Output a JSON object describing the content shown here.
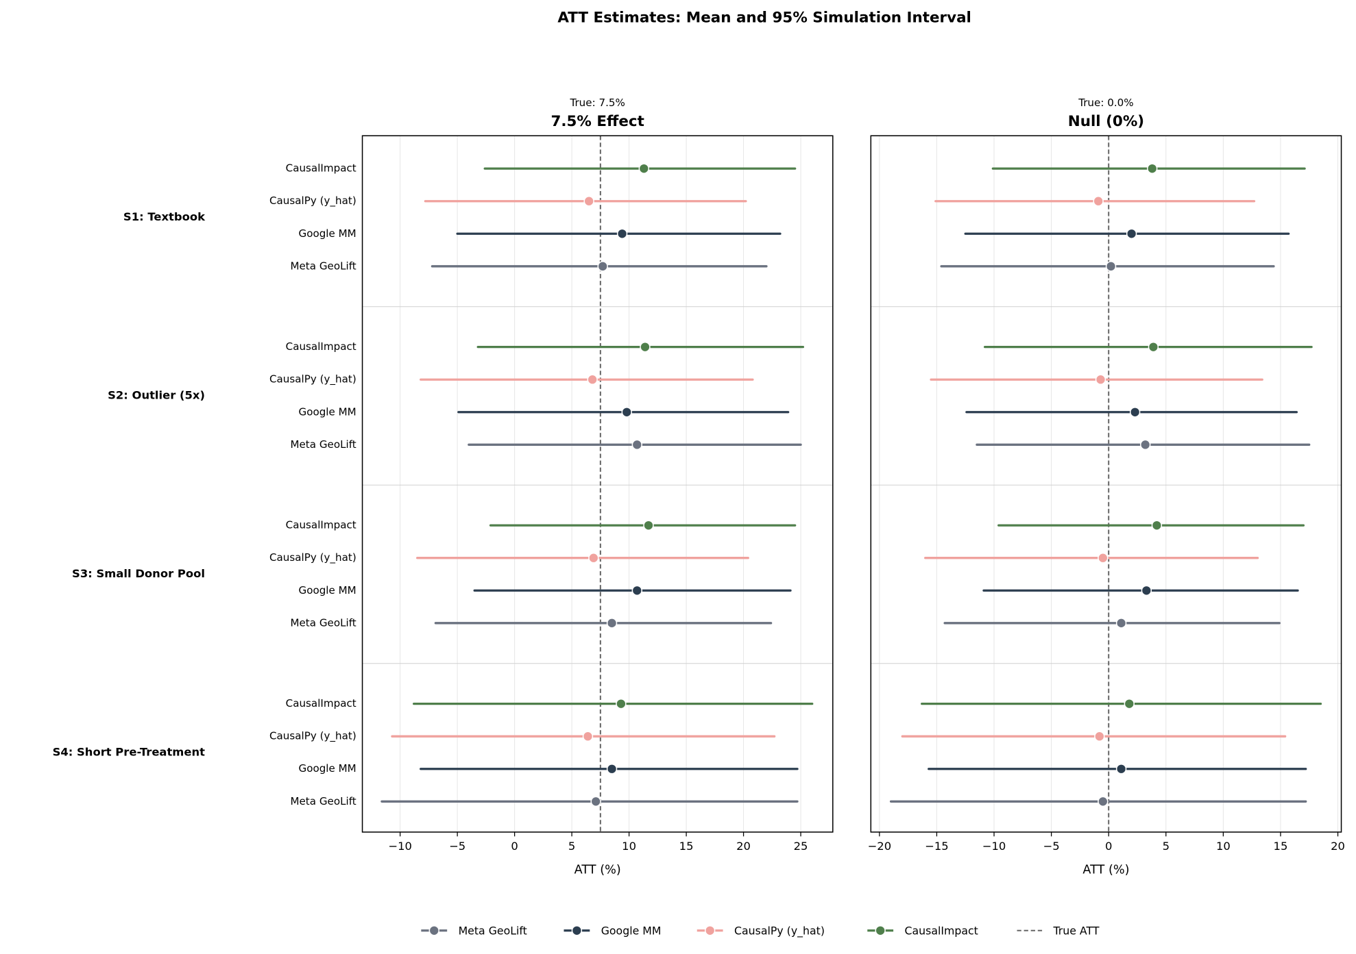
{
  "chart_data": {
    "type": "forest",
    "title": "ATT Estimates: Mean and 95% Simulation Interval",
    "categories": [
      "S1: Textbook",
      "S2: Outlier (5x)",
      "S3: Small Donor Pool",
      "S4: Short Pre-Treatment"
    ],
    "series": [
      {
        "name": "Meta GeoLift",
        "color": "#6b7280"
      },
      {
        "name": "Google MM",
        "color": "#2c3e50"
      },
      {
        "name": "CausalPy (y_hat)",
        "color": "#f0a29e"
      },
      {
        "name": "CausalImpact",
        "color": "#4f7f4b"
      }
    ],
    "reference": {
      "name": "True ATT",
      "color": "#666666"
    },
    "grid": true,
    "panels": [
      {
        "title": "7.5% Effect",
        "note": "True: 7.5%",
        "true_value": 7.5,
        "xlabel": "ATT (%)",
        "xlim": [
          -13.3,
          27.8
        ],
        "xticks": [
          {
            "value": -10,
            "label": "−10"
          },
          {
            "value": -5,
            "label": "−5"
          },
          0,
          5,
          10,
          15,
          20,
          25
        ],
        "series": [
          {
            "values": [
              7.7,
              10.7,
              8.5,
              7.1
            ],
            "low": [
              -7.2,
              -4.0,
              -6.9,
              -11.6
            ],
            "high": [
              22.0,
              25.0,
              22.4,
              24.7
            ]
          },
          {
            "values": [
              9.4,
              9.8,
              10.7,
              8.5
            ],
            "low": [
              -5.0,
              -4.9,
              -3.5,
              -8.2
            ],
            "high": [
              23.2,
              23.9,
              24.1,
              24.7
            ]
          },
          {
            "values": [
              6.5,
              6.8,
              6.9,
              6.4
            ],
            "low": [
              -7.8,
              -8.2,
              -8.5,
              -10.7
            ],
            "high": [
              20.2,
              20.8,
              20.4,
              22.7
            ]
          },
          {
            "values": [
              11.3,
              11.4,
              11.7,
              9.3
            ],
            "low": [
              -2.6,
              -3.2,
              -2.1,
              -8.8
            ],
            "high": [
              24.5,
              25.2,
              24.5,
              26.0
            ]
          }
        ]
      },
      {
        "title": "Null (0%)",
        "note": "True: 0.0%",
        "true_value": 0,
        "xlabel": "ATT (%)",
        "xlim": [
          -20.75,
          20.3
        ],
        "xticks": [
          {
            "value": -20,
            "label": "−20"
          },
          {
            "value": -15,
            "label": "−15"
          },
          {
            "value": -10,
            "label": "−10"
          },
          {
            "value": -5,
            "label": "−5"
          },
          0,
          5,
          10,
          15,
          20
        ],
        "series": [
          {
            "values": [
              0.2,
              3.2,
              1.1,
              -0.5
            ],
            "low": [
              -14.6,
              -11.5,
              -14.3,
              -19.0
            ],
            "high": [
              14.4,
              17.5,
              14.9,
              17.2
            ]
          },
          {
            "values": [
              2.0,
              2.3,
              3.3,
              1.1
            ],
            "low": [
              -12.5,
              -12.4,
              -10.9,
              -15.7
            ],
            "high": [
              15.7,
              16.4,
              16.5,
              17.2
            ]
          },
          {
            "values": [
              -0.9,
              -0.7,
              -0.5,
              -0.8
            ],
            "low": [
              -15.1,
              -15.5,
              -16.0,
              -18.0
            ],
            "high": [
              12.7,
              13.4,
              13.0,
              15.4
            ]
          },
          {
            "values": [
              3.8,
              3.9,
              4.2,
              1.8
            ],
            "low": [
              -10.1,
              -10.8,
              -9.6,
              -16.3
            ],
            "high": [
              17.1,
              17.7,
              17.0,
              18.5
            ]
          }
        ]
      }
    ]
  }
}
